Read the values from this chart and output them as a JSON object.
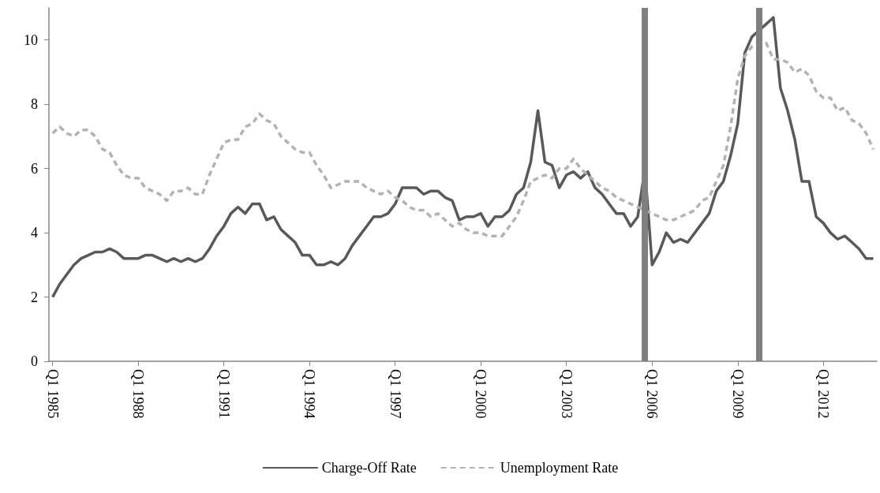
{
  "chart_data": {
    "type": "line",
    "x": [
      "1985-01",
      "1985-04",
      "1985-07",
      "1985-10",
      "1986-01",
      "1986-04",
      "1986-07",
      "1986-10",
      "1987-01",
      "1987-04",
      "1987-07",
      "1987-10",
      "1988-01",
      "1988-04",
      "1988-07",
      "1988-10",
      "1989-01",
      "1989-04",
      "1989-07",
      "1989-10",
      "1990-01",
      "1990-04",
      "1990-07",
      "1990-10",
      "1991-01",
      "1991-04",
      "1991-07",
      "1991-10",
      "1992-01",
      "1992-04",
      "1992-07",
      "1992-10",
      "1993-01",
      "1993-04",
      "1993-07",
      "1993-10",
      "1994-01",
      "1994-04",
      "1994-07",
      "1994-10",
      "1995-01",
      "1995-04",
      "1995-07",
      "1995-10",
      "1996-01",
      "1996-04",
      "1996-07",
      "1996-10",
      "1997-01",
      "1997-04",
      "1997-07",
      "1997-10",
      "1998-01",
      "1998-04",
      "1998-07",
      "1998-10",
      "1999-01",
      "1999-04",
      "1999-07",
      "1999-10",
      "2000-01",
      "2000-04",
      "2000-07",
      "2000-10",
      "2001-01",
      "2001-04",
      "2001-07",
      "2001-10",
      "2002-01",
      "2002-04",
      "2002-07",
      "2002-10",
      "2003-01",
      "2003-04",
      "2003-07",
      "2003-10",
      "2004-01",
      "2004-04",
      "2004-07",
      "2004-10",
      "2005-01",
      "2005-04",
      "2005-07",
      "2005-10",
      "2006-01",
      "2006-04",
      "2006-07",
      "2006-10",
      "2007-01",
      "2007-04",
      "2007-07",
      "2007-10",
      "2008-01",
      "2008-04",
      "2008-07",
      "2008-10",
      "2009-01",
      "2009-04",
      "2009-07",
      "2009-10",
      "2010-01",
      "2010-04",
      "2010-07",
      "2010-10",
      "2011-01",
      "2011-04",
      "2011-07",
      "2011-10",
      "2012-01",
      "2012-04",
      "2012-07",
      "2012-10",
      "2013-01",
      "2013-04",
      "2013-07",
      "2013-10"
    ],
    "series": [
      {
        "name": "Charge-Off Rate",
        "color": "#595959",
        "line_style": "solid",
        "values": [
          2.0,
          2.4,
          2.7,
          3.0,
          3.2,
          3.3,
          3.4,
          3.4,
          3.5,
          3.4,
          3.2,
          3.2,
          3.2,
          3.3,
          3.3,
          3.2,
          3.1,
          3.2,
          3.1,
          3.2,
          3.1,
          3.2,
          3.5,
          3.9,
          4.2,
          4.6,
          4.8,
          4.6,
          4.9,
          4.9,
          4.4,
          4.5,
          4.1,
          3.9,
          3.7,
          3.3,
          3.3,
          3.0,
          3.0,
          3.1,
          3.0,
          3.2,
          3.6,
          3.9,
          4.2,
          4.5,
          4.5,
          4.6,
          4.9,
          5.4,
          5.4,
          5.4,
          5.2,
          5.3,
          5.3,
          5.1,
          5.0,
          4.4,
          4.5,
          4.5,
          4.6,
          4.2,
          4.5,
          4.5,
          4.7,
          5.2,
          5.4,
          6.2,
          7.8,
          6.2,
          6.1,
          5.4,
          5.8,
          5.9,
          5.7,
          5.9,
          5.4,
          5.2,
          4.9,
          4.6,
          4.6,
          4.2,
          4.5,
          6.0,
          3.0,
          3.4,
          4.0,
          3.7,
          3.8,
          3.7,
          4.0,
          4.3,
          4.6,
          5.3,
          5.6,
          6.4,
          7.4,
          9.6,
          10.1,
          10.3,
          10.5,
          10.7,
          8.5,
          7.8,
          6.9,
          5.6,
          5.6,
          4.5,
          4.3,
          4.0,
          3.8,
          3.9,
          3.7,
          3.5,
          3.2,
          3.2
        ]
      },
      {
        "name": "Unemployment Rate",
        "color": "#b3b3b3",
        "line_style": "dashed",
        "values": [
          7.1,
          7.3,
          7.1,
          7.0,
          7.2,
          7.2,
          7.0,
          6.6,
          6.5,
          6.1,
          5.8,
          5.7,
          5.7,
          5.4,
          5.3,
          5.2,
          5.0,
          5.3,
          5.3,
          5.4,
          5.2,
          5.2,
          5.8,
          6.3,
          6.8,
          6.9,
          6.9,
          7.3,
          7.4,
          7.7,
          7.5,
          7.4,
          7.0,
          6.8,
          6.6,
          6.5,
          6.5,
          6.1,
          5.8,
          5.4,
          5.5,
          5.6,
          5.6,
          5.6,
          5.4,
          5.3,
          5.2,
          5.3,
          5.1,
          5.0,
          4.8,
          4.7,
          4.7,
          4.5,
          4.6,
          4.4,
          4.2,
          4.3,
          4.1,
          4.0,
          4.0,
          3.9,
          3.9,
          3.9,
          4.2,
          4.5,
          5.0,
          5.6,
          5.7,
          5.8,
          5.7,
          6.0,
          6.0,
          6.3,
          6.0,
          5.8,
          5.6,
          5.4,
          5.3,
          5.1,
          5.0,
          4.9,
          4.8,
          4.7,
          4.6,
          4.5,
          4.4,
          4.4,
          4.5,
          4.6,
          4.7,
          5.0,
          5.1,
          5.6,
          6.1,
          7.3,
          8.8,
          9.5,
          9.8,
          9.9,
          9.9,
          9.4,
          9.4,
          9.3,
          9.0,
          9.1,
          8.9,
          8.4,
          8.2,
          8.2,
          7.8,
          7.9,
          7.5,
          7.4,
          7.1,
          6.6
        ]
      }
    ],
    "xlim": [
      "1984-11-15",
      "2013-11-15"
    ],
    "xticks": [
      {
        "value": "1985-01",
        "label": "Q1 1985"
      },
      {
        "value": "1988-01",
        "label": "Q1 1988"
      },
      {
        "value": "1991-01",
        "label": "Q1 1991"
      },
      {
        "value": "1994-01",
        "label": "Q1 1994"
      },
      {
        "value": "1997-01",
        "label": "Q1 1997"
      },
      {
        "value": "2000-01",
        "label": "Q1 2000"
      },
      {
        "value": "2003-01",
        "label": "Q1 2003"
      },
      {
        "value": "2006-01",
        "label": "Q1 2006"
      },
      {
        "value": "2009-01",
        "label": "Q1 2009"
      },
      {
        "value": "2012-01",
        "label": "Q1 2012"
      }
    ],
    "ylim": [
      0,
      11
    ],
    "yticks": [
      0,
      2,
      4,
      6,
      8,
      10
    ],
    "ref_lines": [
      {
        "axis": "x",
        "value": "2005-10",
        "color": "#808080"
      },
      {
        "axis": "x",
        "value": "2009-10",
        "color": "#808080"
      }
    ],
    "grid": false,
    "legend": "bottom",
    "marker": "none"
  }
}
